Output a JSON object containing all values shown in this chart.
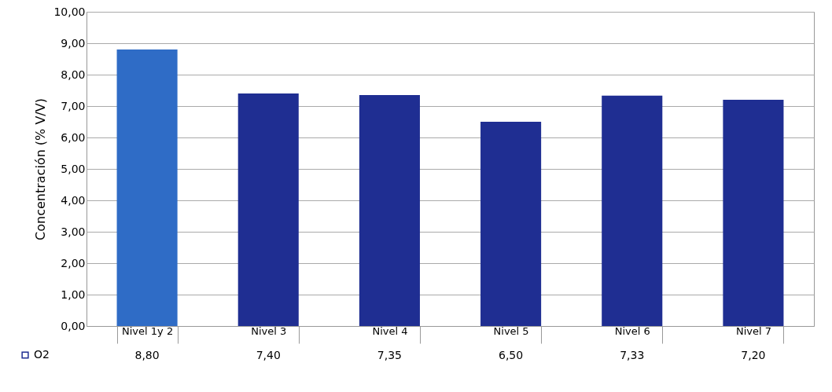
{
  "chart_data": {
    "type": "bar",
    "ylabel": "Concentración (% V/V)",
    "categories": [
      "Nivel 1y 2",
      "Nivel 3",
      "Nivel 4",
      "Nivel 5",
      "Nivel 6",
      "Nivel 7"
    ],
    "series": [
      {
        "name": "O2",
        "color": "#1f2e92",
        "colors": [
          "#2f6cc6",
          "#1f2e92",
          "#1f2e92",
          "#1f2e92",
          "#1f2e92",
          "#1f2e92"
        ],
        "values": [
          8.8,
          7.4,
          7.35,
          6.5,
          7.33,
          7.2
        ],
        "value_labels": [
          "8,80",
          "7,40",
          "7,35",
          "6,50",
          "7,33",
          "7,20"
        ]
      }
    ],
    "ylim": [
      0,
      10
    ],
    "yticks": [
      {
        "value": 0,
        "label": "0,00"
      },
      {
        "value": 1,
        "label": "1,00"
      },
      {
        "value": 2,
        "label": "2,00"
      },
      {
        "value": 3,
        "label": "3,00"
      },
      {
        "value": 4,
        "label": "4,00"
      },
      {
        "value": 5,
        "label": "5,00"
      },
      {
        "value": 6,
        "label": "6,00"
      },
      {
        "value": 7,
        "label": "7,00"
      },
      {
        "value": 8,
        "label": "8,00"
      },
      {
        "value": 9,
        "label": "9,00"
      },
      {
        "value": 10,
        "label": "10,00"
      }
    ],
    "grid": "y",
    "legend": "bottom left"
  }
}
